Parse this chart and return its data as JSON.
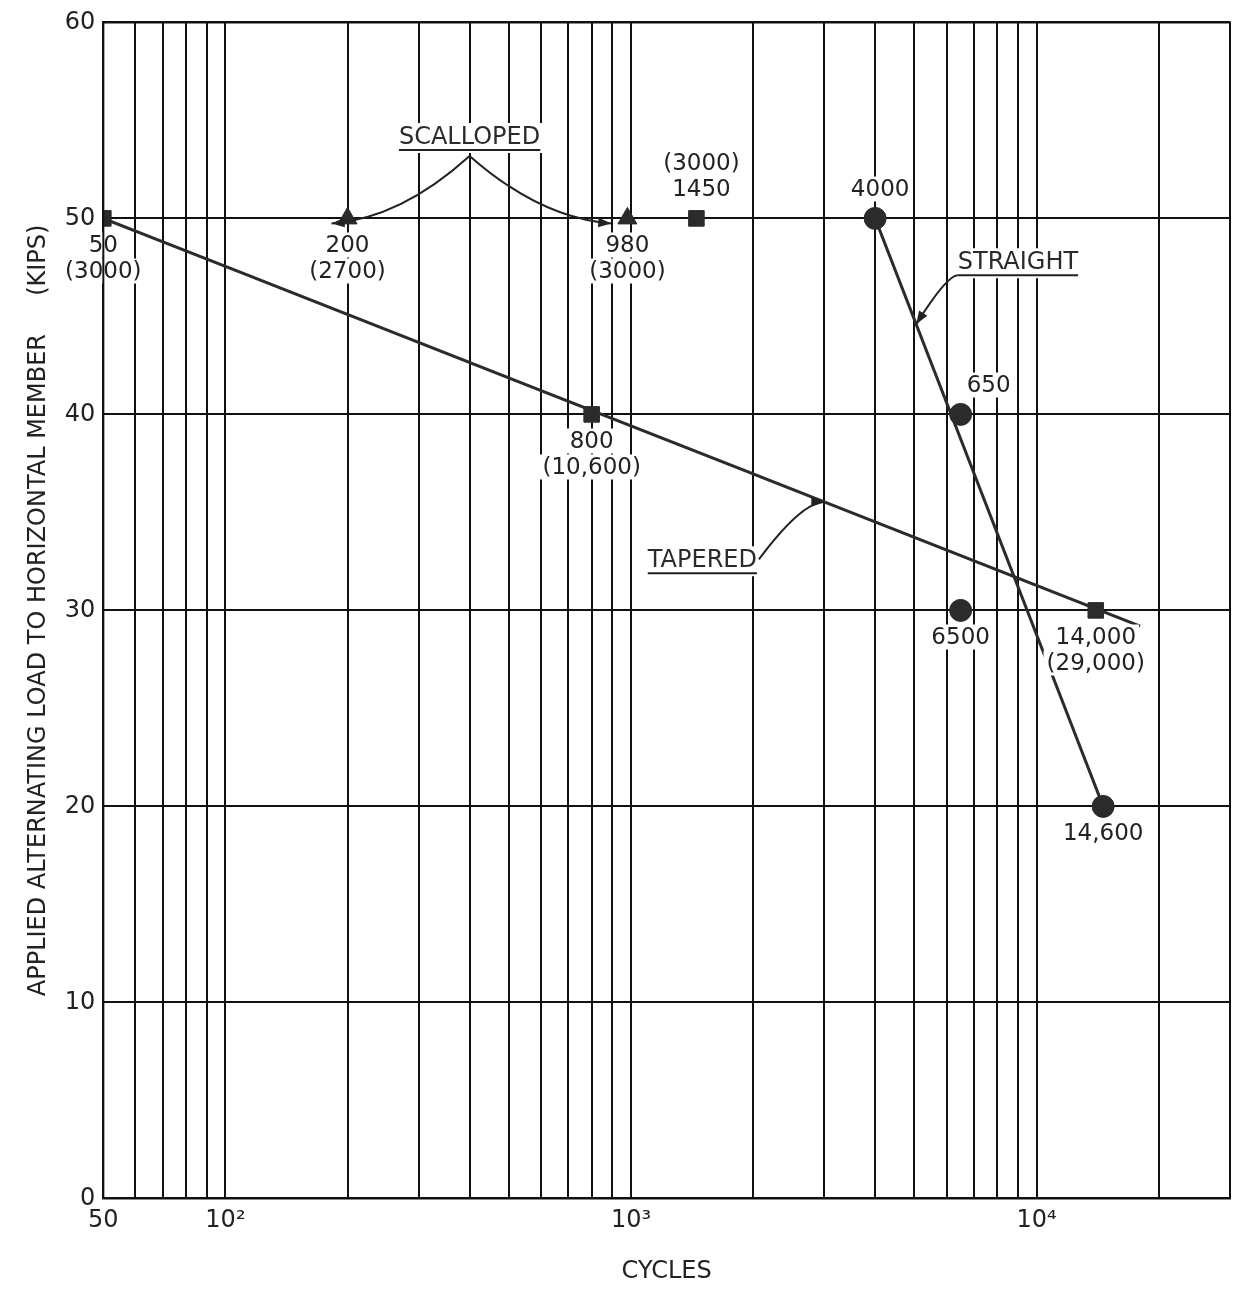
{
  "chart_data": {
    "type": "scatter",
    "xlabel": "CYCLES",
    "ylabel": "APPLIED ALTERNATING LOAD TO HORIZONTAL MEMBER     (KIPS)",
    "log": "x",
    "annotations": [
      {
        "text": "50\n(3000)",
        "x": 50,
        "y": 50
      },
      {
        "text": "800\n(10,600)",
        "x": 800,
        "y": 40
      },
      {
        "text": "14,000\n(29,000)",
        "x": 14000,
        "y": 30
      },
      {
        "text": "(3000)\n1450",
        "x": 1450,
        "y": 50
      },
      {
        "text": "200\n(2700)",
        "x": 200,
        "y": 50
      },
      {
        "text": "980\n(3000)",
        "x": 980,
        "y": 50
      },
      {
        "text": "4000",
        "x": 4000,
        "y": 50
      },
      {
        "text": "650",
        "x": 6500,
        "y": 40
      },
      {
        "text": "6500",
        "x": 6500,
        "y": 30
      },
      {
        "text": "14,600",
        "x": 14600,
        "y": 20
      }
    ],
    "grid": true,
    "legend": false,
    "xlim": [
      50,
      30000
    ],
    "ylim": [
      0,
      60
    ],
    "xticks": [
      50,
      {
        "value": 60,
        "label": null
      },
      {
        "value": 70,
        "label": null
      },
      {
        "value": 80,
        "label": null
      },
      {
        "value": 90,
        "label": null
      },
      {
        "value": 100,
        "label": "10²"
      },
      {
        "value": 200,
        "label": null
      },
      {
        "value": 300,
        "label": null
      },
      {
        "value": 400,
        "label": null
      },
      {
        "value": 500,
        "label": null
      },
      {
        "value": 600,
        "label": null
      },
      {
        "value": 700,
        "label": null
      },
      {
        "value": 800,
        "label": null
      },
      {
        "value": 900,
        "label": null
      },
      {
        "value": 1000,
        "label": "10³"
      },
      {
        "value": 2000,
        "label": null
      },
      {
        "value": 3000,
        "label": null
      },
      {
        "value": 4000,
        "label": null
      },
      {
        "value": 5000,
        "label": null
      },
      {
        "value": 6000,
        "label": null
      },
      {
        "value": 7000,
        "label": null
      },
      {
        "value": 8000,
        "label": null
      },
      {
        "value": 9000,
        "label": null
      },
      {
        "value": 10000,
        "label": "10⁴"
      },
      {
        "value": 20000,
        "label": null
      }
    ],
    "yticks": [
      0,
      10,
      20,
      30,
      40,
      50,
      60
    ],
    "series": [
      {
        "name": "TAPERED",
        "type": "line",
        "marker": "none",
        "color": "#2b2b2b",
        "x": [
          50,
          18000
        ],
        "values": [
          50,
          29.2
        ]
      },
      {
        "type": "scatter",
        "marker": "square",
        "color": "#2b2b2b",
        "x": [
          50,
          800,
          14000,
          1450
        ],
        "values": [
          50,
          40,
          30,
          50
        ]
      },
      {
        "name": "SCALLOPED",
        "type": "scatter",
        "marker": "triangle",
        "color": "#2b2b2b",
        "x": [
          200,
          980
        ],
        "values": [
          50,
          50
        ]
      },
      {
        "name": "STRAIGHT",
        "type": "line",
        "marker": "none",
        "color": "#2b2b2b",
        "x": [
          4000,
          14600
        ],
        "values": [
          50,
          20
        ]
      },
      {
        "type": "scatter",
        "marker": "circle",
        "color": "#2b2b2b",
        "x": [
          4000,
          6500,
          6500,
          14600
        ],
        "values": [
          50,
          40,
          30,
          20
        ]
      }
    ]
  }
}
